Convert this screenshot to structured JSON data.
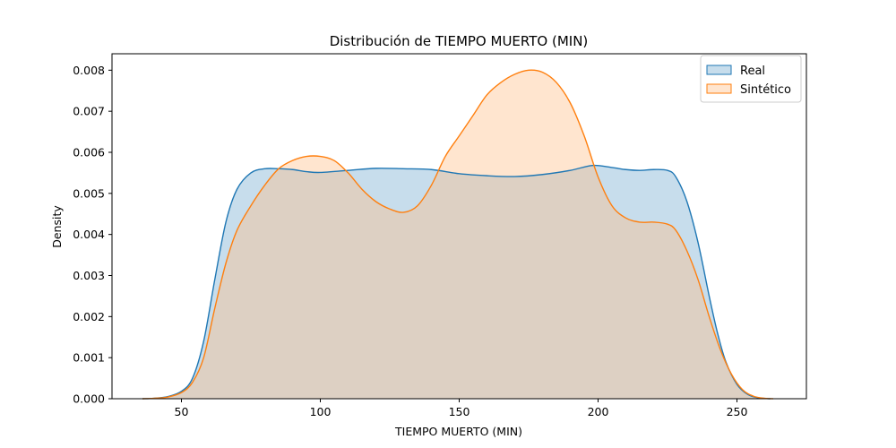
{
  "chart_data": {
    "type": "area",
    "title": "Distribución de TIEMPO MUERTO (MIN)",
    "xlabel": "TIEMPO MUERTO (MIN)",
    "ylabel": "Density",
    "xlim": [
      25,
      275
    ],
    "ylim": [
      0,
      0.0084
    ],
    "xticks": [
      50,
      100,
      150,
      200,
      250
    ],
    "xtick_labels": [
      "50",
      "100",
      "150",
      "200",
      "250"
    ],
    "yticks": [
      0,
      0.001,
      0.002,
      0.003,
      0.004,
      0.005,
      0.006,
      0.007,
      0.008
    ],
    "ytick_labels": [
      "0.000",
      "0.001",
      "0.002",
      "0.003",
      "0.004",
      "0.005",
      "0.006",
      "0.007",
      "0.008"
    ],
    "grid": false,
    "legend_position": "top-right",
    "series": [
      {
        "name": "Real",
        "color": "#1f77b4",
        "fill_color": "#1f77b4",
        "points": [
          [
            36,
            0
          ],
          [
            40,
            1e-05
          ],
          [
            45,
            5e-05
          ],
          [
            50,
            0.00018
          ],
          [
            54,
            0.0005
          ],
          [
            58,
            0.0014
          ],
          [
            62,
            0.0029
          ],
          [
            66,
            0.0043
          ],
          [
            70,
            0.0051
          ],
          [
            75,
            0.0055
          ],
          [
            80,
            0.0056
          ],
          [
            85,
            0.0056
          ],
          [
            90,
            0.00558
          ],
          [
            95,
            0.00553
          ],
          [
            100,
            0.00551
          ],
          [
            110,
            0.00556
          ],
          [
            120,
            0.00561
          ],
          [
            130,
            0.0056
          ],
          [
            140,
            0.00558
          ],
          [
            150,
            0.00548
          ],
          [
            160,
            0.00543
          ],
          [
            170,
            0.00541
          ],
          [
            180,
            0.00546
          ],
          [
            190,
            0.00556
          ],
          [
            198,
            0.00568
          ],
          [
            205,
            0.00563
          ],
          [
            210,
            0.00558
          ],
          [
            215,
            0.00556
          ],
          [
            220,
            0.00558
          ],
          [
            225,
            0.00556
          ],
          [
            228,
            0.0054
          ],
          [
            232,
            0.0048
          ],
          [
            236,
            0.0038
          ],
          [
            240,
            0.0025
          ],
          [
            243,
            0.0016
          ],
          [
            246,
            0.0009
          ],
          [
            250,
            0.00035
          ],
          [
            254,
            0.0001
          ],
          [
            258,
            2e-05
          ],
          [
            262,
            0
          ]
        ]
      },
      {
        "name": "Sintético",
        "color": "#ff7f0e",
        "fill_color": "#ffbf86",
        "points": [
          [
            36,
            0
          ],
          [
            40,
            1e-05
          ],
          [
            45,
            4e-05
          ],
          [
            50,
            0.00015
          ],
          [
            54,
            0.0004
          ],
          [
            58,
            0.001
          ],
          [
            62,
            0.0022
          ],
          [
            66,
            0.0033
          ],
          [
            70,
            0.0041
          ],
          [
            75,
            0.0047
          ],
          [
            80,
            0.0052
          ],
          [
            85,
            0.0056
          ],
          [
            90,
            0.0058
          ],
          [
            95,
            0.0059
          ],
          [
            100,
            0.0059
          ],
          [
            105,
            0.0058
          ],
          [
            110,
            0.0055
          ],
          [
            115,
            0.0051
          ],
          [
            120,
            0.0048
          ],
          [
            125,
            0.00462
          ],
          [
            130,
            0.00454
          ],
          [
            135,
            0.0047
          ],
          [
            140,
            0.0052
          ],
          [
            145,
            0.0059
          ],
          [
            150,
            0.0064
          ],
          [
            155,
            0.0069
          ],
          [
            160,
            0.0074
          ],
          [
            165,
            0.0077
          ],
          [
            170,
            0.0079
          ],
          [
            175,
            0.008
          ],
          [
            180,
            0.00795
          ],
          [
            185,
            0.0077
          ],
          [
            190,
            0.0072
          ],
          [
            195,
            0.0064
          ],
          [
            200,
            0.0054
          ],
          [
            205,
            0.0047
          ],
          [
            210,
            0.0044
          ],
          [
            215,
            0.0043
          ],
          [
            220,
            0.0043
          ],
          [
            225,
            0.00425
          ],
          [
            228,
            0.0041
          ],
          [
            232,
            0.0036
          ],
          [
            236,
            0.0029
          ],
          [
            240,
            0.002
          ],
          [
            244,
            0.0012
          ],
          [
            248,
            0.0006
          ],
          [
            252,
            0.00022
          ],
          [
            256,
            6e-05
          ],
          [
            260,
            1e-05
          ],
          [
            263,
            0
          ]
        ]
      }
    ]
  }
}
